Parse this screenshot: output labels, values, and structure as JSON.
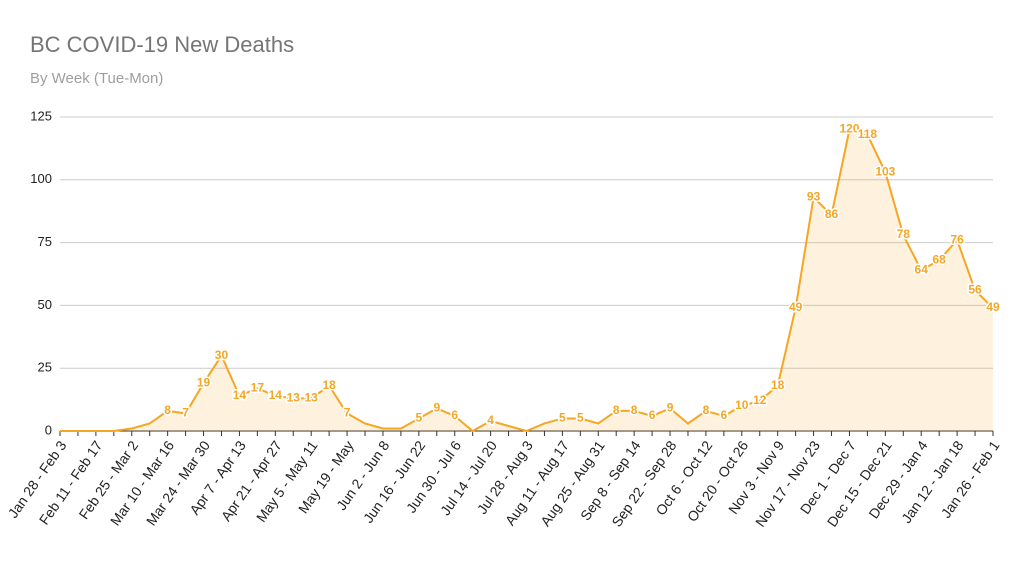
{
  "chart_data": {
    "type": "line",
    "title": "BC COVID-19 New Deaths",
    "subtitle": "By Week (Tue-Mon)",
    "categories": [
      "Jan 28 - Feb 3",
      null,
      "Feb 11 - Feb 17",
      null,
      "Feb 25 - Mar 2",
      null,
      "Mar 10 - Mar 16",
      null,
      "Mar 24 - Mar 30",
      null,
      "Apr 7 - Apr 13",
      null,
      "Apr 21 - Apr 27",
      null,
      "May 5 - May 11",
      null,
      "May 19 - May",
      null,
      "Jun 2 - Jun 8",
      null,
      "Jun 16 - Jun 22",
      null,
      "Jun 30 - Jul 6",
      null,
      "Jul 14 - Jul 20",
      null,
      "Jul 28 - Aug 3",
      null,
      "Aug 11 - Aug 17",
      null,
      "Aug 25 - Aug 31",
      null,
      "Sep 8 - Sep 14",
      null,
      "Sep 22 - Sep 28",
      null,
      "Oct 6 - Oct 12",
      null,
      "Oct 20 - Oct 26",
      null,
      "Nov 3 - Nov 9",
      null,
      "Nov 17 - Nov 23",
      null,
      "Dec 1 - Dec 7",
      null,
      "Dec 15 - Dec 21",
      null,
      "Dec 29 - Jan 4",
      null,
      "Jan 12 - Jan 18",
      null,
      "Jan 26 - Feb 1"
    ],
    "values": [
      0,
      0,
      0,
      0,
      1,
      3,
      8,
      7,
      19,
      30,
      14,
      17,
      14,
      13,
      13,
      18,
      7,
      3,
      1,
      1,
      5,
      9,
      6,
      0,
      4,
      2,
      0,
      3,
      5,
      5,
      3,
      8,
      8,
      6,
      9,
      3,
      8,
      6,
      10,
      12,
      18,
      49,
      93,
      86,
      120,
      118,
      103,
      78,
      64,
      68,
      76,
      56,
      49
    ],
    "value_labels": [
      null,
      null,
      null,
      null,
      null,
      null,
      "8",
      "7",
      "19",
      "30",
      "14",
      "17",
      "14",
      "13",
      "13",
      "18",
      "7",
      null,
      null,
      null,
      "5",
      "9",
      "6",
      null,
      "4",
      null,
      null,
      null,
      "5",
      "5",
      null,
      "8",
      "8",
      "6",
      "9",
      null,
      "8",
      "6",
      "10",
      "12",
      "18",
      "49",
      "93",
      "86",
      "120",
      "118",
      "103",
      "78",
      "64",
      "68",
      "76",
      "56",
      "49"
    ],
    "color": "#f5a623",
    "area": true,
    "ylim": [
      0,
      125
    ],
    "yticks": [
      0,
      25,
      50,
      75,
      100,
      125
    ],
    "grid": true
  }
}
